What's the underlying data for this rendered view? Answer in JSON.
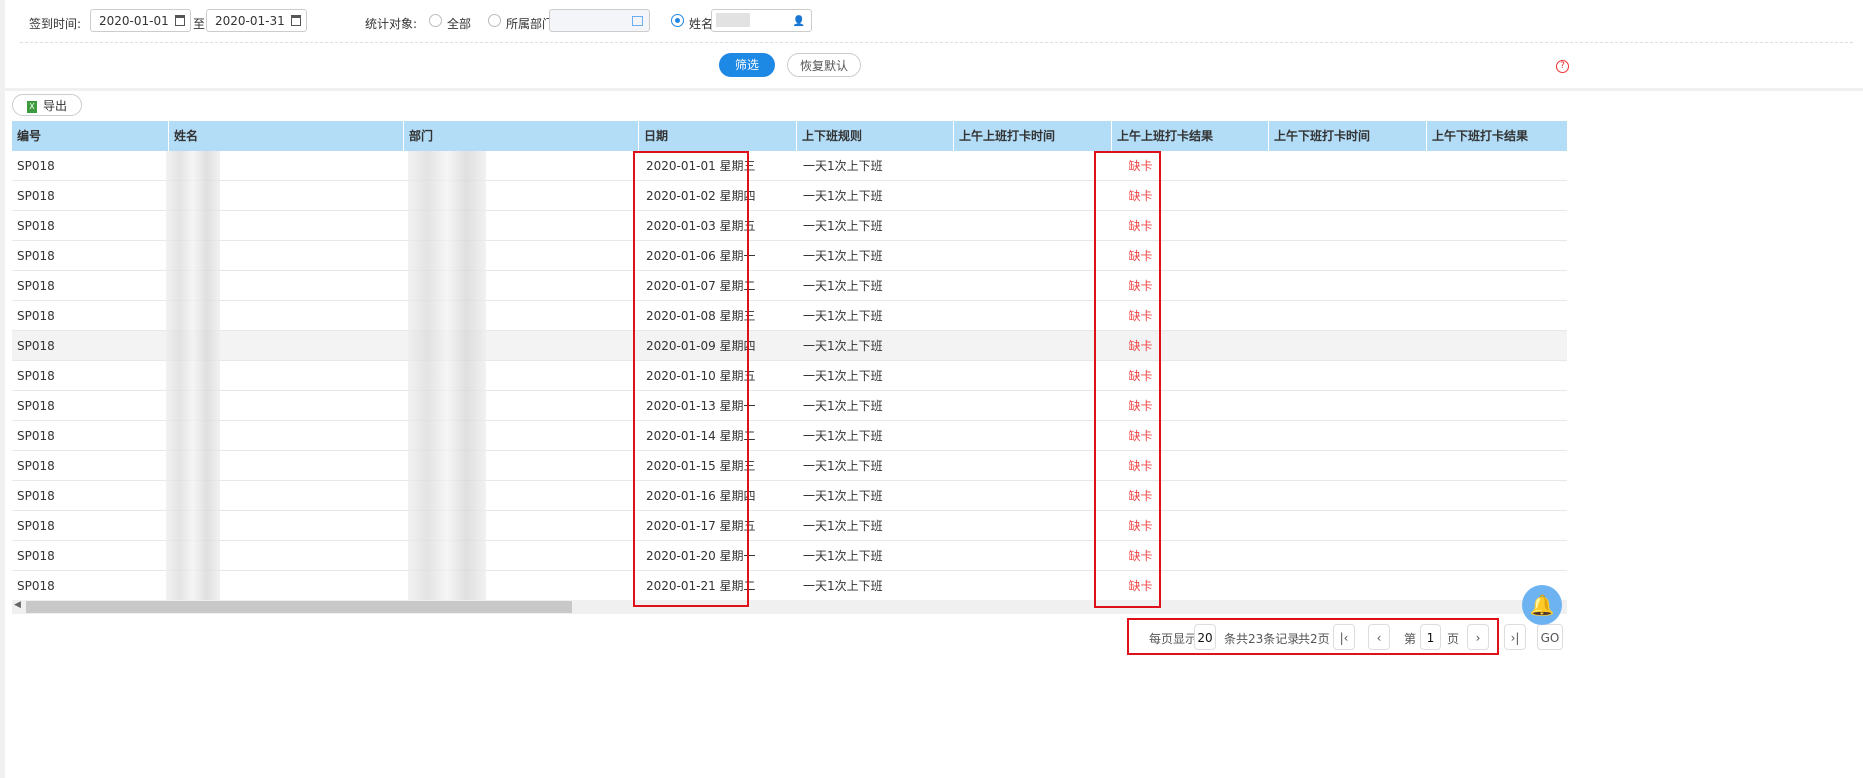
{
  "filter": {
    "date_label": "签到时间:",
    "start_date": "2020-01-01",
    "to": "至",
    "end_date": "2020-01-31",
    "target_label": "统计对象:",
    "opt_all": "全部",
    "opt_dept": "所属部门",
    "opt_name": "姓名",
    "selected": "姓名"
  },
  "buttons": {
    "filter": "筛选",
    "reset": "恢复默认",
    "export": "导出"
  },
  "colors": {
    "accent": "#1e88e5",
    "header_bg": "#b3dcf7",
    "missing": "#f04848",
    "highlight": "#e0101a"
  },
  "table": {
    "columns": [
      "编号",
      "姓名",
      "部门",
      "日期",
      "上下班规则",
      "上午上班打卡时间",
      "上午上班打卡结果",
      "上午下班打卡时间",
      "上午下班打卡结果"
    ],
    "rows": [
      {
        "id": "SP018",
        "date": "2020-01-01 星期三",
        "rule": "一天1次上下班",
        "result": "缺卡"
      },
      {
        "id": "SP018",
        "date": "2020-01-02 星期四",
        "rule": "一天1次上下班",
        "result": "缺卡"
      },
      {
        "id": "SP018",
        "date": "2020-01-03 星期五",
        "rule": "一天1次上下班",
        "result": "缺卡"
      },
      {
        "id": "SP018",
        "date": "2020-01-06 星期一",
        "rule": "一天1次上下班",
        "result": "缺卡"
      },
      {
        "id": "SP018",
        "date": "2020-01-07 星期二",
        "rule": "一天1次上下班",
        "result": "缺卡"
      },
      {
        "id": "SP018",
        "date": "2020-01-08 星期三",
        "rule": "一天1次上下班",
        "result": "缺卡"
      },
      {
        "id": "SP018",
        "date": "2020-01-09 星期四",
        "rule": "一天1次上下班",
        "result": "缺卡"
      },
      {
        "id": "SP018",
        "date": "2020-01-10 星期五",
        "rule": "一天1次上下班",
        "result": "缺卡"
      },
      {
        "id": "SP018",
        "date": "2020-01-13 星期一",
        "rule": "一天1次上下班",
        "result": "缺卡"
      },
      {
        "id": "SP018",
        "date": "2020-01-14 星期二",
        "rule": "一天1次上下班",
        "result": "缺卡"
      },
      {
        "id": "SP018",
        "date": "2020-01-15 星期三",
        "rule": "一天1次上下班",
        "result": "缺卡"
      },
      {
        "id": "SP018",
        "date": "2020-01-16 星期四",
        "rule": "一天1次上下班",
        "result": "缺卡"
      },
      {
        "id": "SP018",
        "date": "2020-01-17 星期五",
        "rule": "一天1次上下班",
        "result": "缺卡"
      },
      {
        "id": "SP018",
        "date": "2020-01-20 星期一",
        "rule": "一天1次上下班",
        "result": "缺卡"
      },
      {
        "id": "SP018",
        "date": "2020-01-21 星期二",
        "rule": "一天1次上下班",
        "result": "缺卡"
      }
    ]
  },
  "pagination": {
    "per_page_label": "每页显示",
    "per_page": "20",
    "records": "条共23条记录",
    "pages": "共2页",
    "page_prefix": "第",
    "page": "1",
    "page_suffix": "页",
    "go": "GO"
  }
}
